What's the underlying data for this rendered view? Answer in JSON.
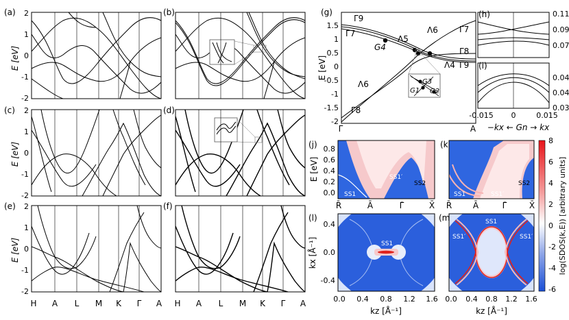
{
  "panels": {
    "a": "(a)",
    "b": "(b)",
    "c": "(c)",
    "d": "(d)",
    "e": "(e)",
    "f": "(f)",
    "g": "(g)",
    "h": "(h)",
    "i": "(i)",
    "j": "(j)",
    "k": "(k)",
    "l": "(l)",
    "m": "(m)"
  },
  "band_axis": {
    "ylabel": "E [eV]",
    "yticks": [
      "2",
      "1",
      "0",
      "-1",
      "-2"
    ],
    "xticks": [
      "H",
      "A",
      "L",
      "M",
      "K",
      "Γ",
      "A"
    ]
  },
  "g_panel": {
    "ylabel": "E [eV]",
    "yticks": [
      "1.5",
      "1",
      "0.5",
      "0",
      "-0.5",
      "-1",
      "-1.5",
      "-2"
    ],
    "xticks": [
      "Γ",
      "A"
    ],
    "labels": {
      "gamma9_top": "Γ9",
      "gamma7_left": "Γ7",
      "lambda5": "Λ5",
      "lambda6_top": "Λ6",
      "gamma7_right": "Γ7",
      "gamma8_right": "Γ8",
      "lambda4": "Λ4",
      "gamma9_right": "Γ9",
      "lambda6_bottom": "Λ6",
      "gamma8_bottom": "Γ8",
      "G4": "G4",
      "G3": "G3",
      "G2": "G2",
      "G1": "G1"
    }
  },
  "h_panel": {
    "yticks": [
      "0.11",
      "0.09",
      "0.07"
    ]
  },
  "i_panel": {
    "yticks": [
      "0.043",
      "0.041",
      "0.039"
    ],
    "xticks": [
      "-0.015",
      "0",
      "0.015"
    ]
  },
  "hi_xlabel": "−kx ← Gn → kx",
  "jk_axis": {
    "ylabel": "E [eV]",
    "yticks": [
      "0.8",
      "0.6",
      "0.4",
      "0.2",
      "0.0"
    ],
    "xticks": [
      "R̄",
      "Ā",
      "Γ̄",
      "X̄"
    ]
  },
  "j_labels": {
    "ss1": "SS1",
    "ss1p": "SS1′",
    "ss2": "SS2"
  },
  "k_labels": {
    "ss1": "SS1",
    "ss1p": "SS1′",
    "ss2": "SS2"
  },
  "lm_axis": {
    "ylabel": "kx [Å⁻¹]",
    "yticks": [
      "0.4",
      "0.0",
      "-0.4"
    ],
    "xticks": [
      "0.0",
      "0.4",
      "0.8",
      "1.2",
      "1.6"
    ],
    "xlabel": "kz [Å⁻¹]"
  },
  "l_labels": {
    "ss1": "SS1"
  },
  "m_labels": {
    "ss1": "SS1",
    "ss1p_left": "SS1′",
    "ss1p_right": "SS1′"
  },
  "colorbar": {
    "label": "log(SDOS(k,E)) [arbitrary units]",
    "ticks": [
      "8",
      "6",
      "4",
      "2",
      "0",
      "-2",
      "-4",
      "-6"
    ],
    "colors": {
      "top": "#e8141a",
      "mid": "#ffffff",
      "bottom": "#1a4fd6"
    }
  }
}
